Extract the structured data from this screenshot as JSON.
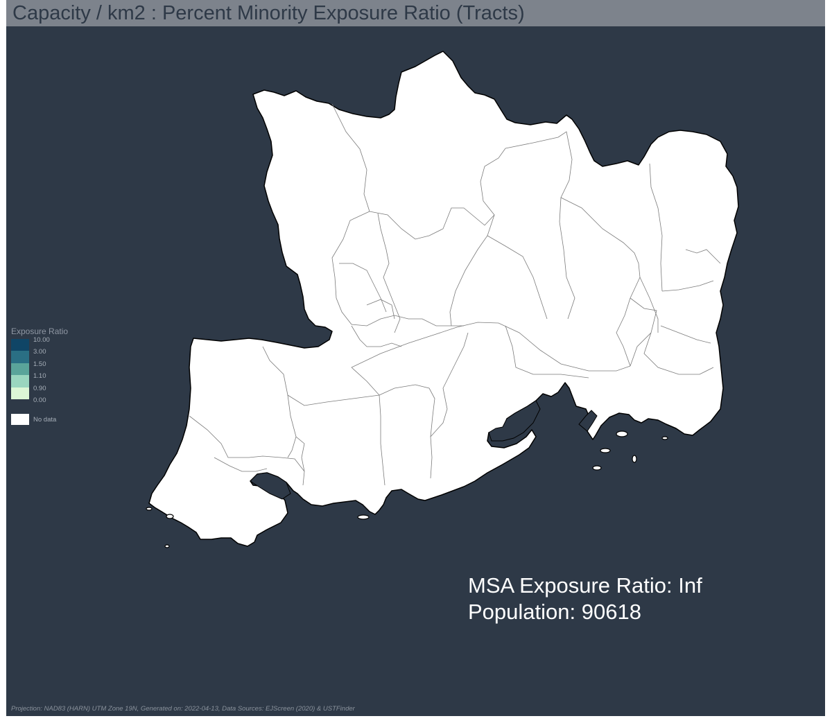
{
  "title": "Capacity / km2 : Percent Minority Exposure Ratio (Tracts)",
  "legend": {
    "title": "Exposure Ratio",
    "classes": [
      {
        "label": "10.00",
        "color": "#0f4566"
      },
      {
        "label": "3.00",
        "color": "#2a6f84"
      },
      {
        "label": "1.50",
        "color": "#5aa49a"
      },
      {
        "label": "1.10",
        "color": "#9ad6bf"
      },
      {
        "label": "0.90",
        "color": "#dcf7d6"
      },
      {
        "label": "0.00",
        "color": null
      }
    ],
    "no_data_label": "No data",
    "no_data_color": "#ffffff"
  },
  "stats": {
    "exposure_line": "MSA Exposure Ratio: Inf",
    "population_line": "Population: 90618"
  },
  "footer": "Projection: NAD83 (HARN) UTM Zone 19N, Generated on: 2022-04-13, Data Sources: EJScreen (2020) & USTFinder",
  "colors": {
    "background": "#2e3947",
    "title_bar": "#7d838c",
    "land": "#ffffff",
    "tract_border": "#7a7a7a"
  }
}
